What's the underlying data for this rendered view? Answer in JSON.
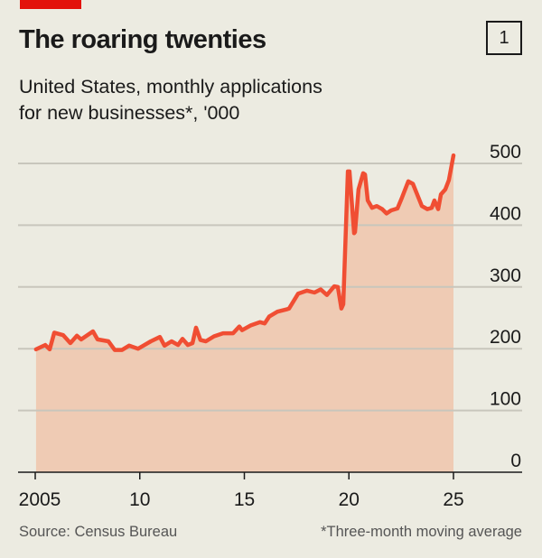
{
  "header": {
    "title": "The roaring twenties",
    "chart_number": "1",
    "subtitle_line1": "United States, monthly applications",
    "subtitle_line2": "for new businesses*, '000"
  },
  "footer": {
    "source": "Source: Census Bureau",
    "note": "*Three-month moving average"
  },
  "colors": {
    "line": "#f04e33",
    "fill": "#efcbb4",
    "grid": "#c8c6bc",
    "brand": "#e3120b",
    "background": "#ecebe1"
  },
  "chart_data": {
    "type": "area",
    "title": "The roaring twenties",
    "subtitle": "United States, monthly applications for new businesses*, '000",
    "xlim": [
      2005,
      2025
    ],
    "ylim": [
      0,
      500
    ],
    "grid": true,
    "y_axis_position": "right",
    "x_ticks": [
      2005,
      2010,
      2015,
      2020,
      2025
    ],
    "x_tick_labels": [
      "2005",
      "10",
      "15",
      "20",
      "25"
    ],
    "y_ticks": [
      0,
      100,
      200,
      300,
      400,
      500
    ],
    "y_tick_labels": [
      "0",
      "100",
      "200",
      "300",
      "400",
      "500"
    ],
    "x": [
      2005.04,
      2005.48,
      2005.69,
      2005.91,
      2006.34,
      2006.68,
      2006.99,
      2007.2,
      2007.76,
      2007.98,
      2008.5,
      2008.8,
      2009.15,
      2009.49,
      2009.92,
      2010.53,
      2010.96,
      2011.18,
      2011.52,
      2011.83,
      2012.04,
      2012.3,
      2012.52,
      2012.69,
      2012.9,
      2013.16,
      2013.55,
      2013.98,
      2014.46,
      2014.76,
      2014.89,
      2015.32,
      2015.75,
      2015.97,
      2016.19,
      2016.58,
      2017.05,
      2017.14,
      2017.57,
      2018.0,
      2018.35,
      2018.65,
      2018.95,
      2019.3,
      2019.47,
      2019.64,
      2019.73,
      2019.95,
      2020.03,
      2020.25,
      2020.29,
      2020.46,
      2020.68,
      2020.77,
      2020.9,
      2021.11,
      2021.33,
      2021.59,
      2021.8,
      2022.02,
      2022.32,
      2022.54,
      2022.84,
      2023.06,
      2023.49,
      2023.75,
      2023.96,
      2024.09,
      2024.27,
      2024.4,
      2024.61,
      2024.78,
      2025.0
    ],
    "values": [
      199,
      206,
      199,
      226,
      222,
      209,
      221,
      215,
      228,
      215,
      212,
      198,
      198,
      205,
      200,
      212,
      219,
      205,
      212,
      206,
      216,
      206,
      209,
      234,
      214,
      212,
      220,
      225,
      225,
      236,
      230,
      238,
      243,
      241,
      252,
      260,
      264,
      265,
      289,
      294,
      291,
      296,
      287,
      301,
      300,
      265,
      272,
      487,
      487,
      387,
      389,
      458,
      484,
      482,
      440,
      428,
      431,
      426,
      419,
      424,
      427,
      445,
      471,
      467,
      431,
      426,
      428,
      440,
      426,
      450,
      458,
      473,
      513
    ]
  }
}
